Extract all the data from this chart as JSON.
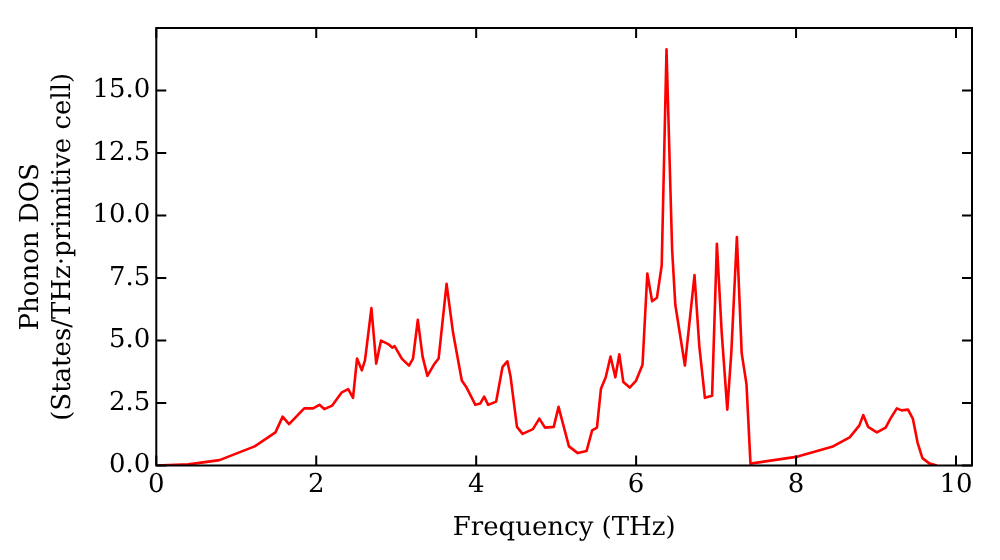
{
  "chart_data": {
    "type": "line",
    "xlabel": "Frequency (THz)",
    "ylabel": "Phonon DOS\n(States/THz·primitive cell)",
    "xlim": [
      0,
      10.2
    ],
    "xticks": [
      0,
      2,
      4,
      6,
      8,
      10
    ],
    "ylim": [
      0,
      17.5
    ],
    "yticks": [
      {
        "value": 0,
        "label": "0.0"
      },
      {
        "value": 2.5,
        "label": "2.5"
      },
      {
        "value": 5,
        "label": "5.0"
      },
      {
        "value": 7.5,
        "label": "7.5"
      },
      {
        "value": 10,
        "label": "10.0"
      },
      {
        "value": 12.5,
        "label": "12.5"
      },
      {
        "value": 15,
        "label": "15.0"
      }
    ],
    "grid": false,
    "legend": false,
    "marker": "none",
    "line_style": "solid",
    "series": [
      {
        "color": "#ff0000",
        "x": [
          0,
          0.4,
          0.79,
          1.23,
          1.49,
          1.58,
          1.66,
          1.85,
          1.96,
          2.04,
          2.1,
          2.2,
          2.32,
          2.4,
          2.46,
          2.51,
          2.57,
          2.61,
          2.69,
          2.75,
          2.81,
          2.9,
          2.95,
          2.98,
          3.07,
          3.16,
          3.21,
          3.27,
          3.33,
          3.39,
          3.47,
          3.53,
          3.63,
          3.71,
          3.82,
          3.88,
          3.99,
          4.05,
          4.1,
          4.15,
          4.25,
          4.33,
          4.39,
          4.43,
          4.51,
          4.58,
          4.71,
          4.79,
          4.86,
          4.97,
          5.03,
          5.08,
          5.16,
          5.27,
          5.38,
          5.45,
          5.51,
          5.56,
          5.62,
          5.68,
          5.74,
          5.79,
          5.84,
          5.92,
          6.0,
          6.08,
          6.14,
          6.2,
          6.26,
          6.32,
          6.38,
          6.45,
          6.49,
          6.61,
          6.73,
          6.79,
          6.86,
          6.95,
          7.01,
          7.07,
          7.14,
          7.19,
          7.26,
          7.32,
          7.38,
          7.43,
          8.02,
          8.45,
          8.67,
          8.79,
          8.84,
          8.9,
          9.01,
          9.12,
          9.18,
          9.26,
          9.32,
          9.4,
          9.46,
          9.52,
          9.58,
          9.67,
          9.76
        ],
        "values": [
          0,
          0.05,
          0.22,
          0.77,
          1.33,
          1.96,
          1.66,
          2.29,
          2.29,
          2.43,
          2.26,
          2.4,
          2.93,
          3.06,
          2.71,
          4.28,
          3.81,
          4.22,
          6.3,
          4.08,
          5.0,
          4.86,
          4.72,
          4.78,
          4.28,
          4.0,
          4.28,
          5.83,
          4.36,
          3.59,
          4.03,
          4.28,
          7.27,
          5.33,
          3.4,
          3.12,
          2.43,
          2.48,
          2.76,
          2.43,
          2.56,
          3.95,
          4.17,
          3.56,
          1.55,
          1.27,
          1.46,
          1.88,
          1.52,
          1.55,
          2.35,
          1.74,
          0.77,
          0.5,
          0.58,
          1.41,
          1.52,
          3.07,
          3.53,
          4.36,
          3.53,
          4.45,
          3.34,
          3.12,
          3.4,
          4.03,
          7.68,
          6.57,
          6.71,
          8.0,
          16.65,
          8.65,
          6.43,
          4.0,
          7.62,
          4.78,
          2.71,
          2.79,
          8.87,
          5.33,
          2.24,
          4.5,
          9.14,
          4.5,
          3.26,
          0.08,
          0.36,
          0.75,
          1.13,
          1.6,
          2.02,
          1.55,
          1.33,
          1.52,
          1.88,
          2.29,
          2.21,
          2.24,
          1.88,
          0.91,
          0.3,
          0.08,
          0
        ]
      }
    ]
  }
}
